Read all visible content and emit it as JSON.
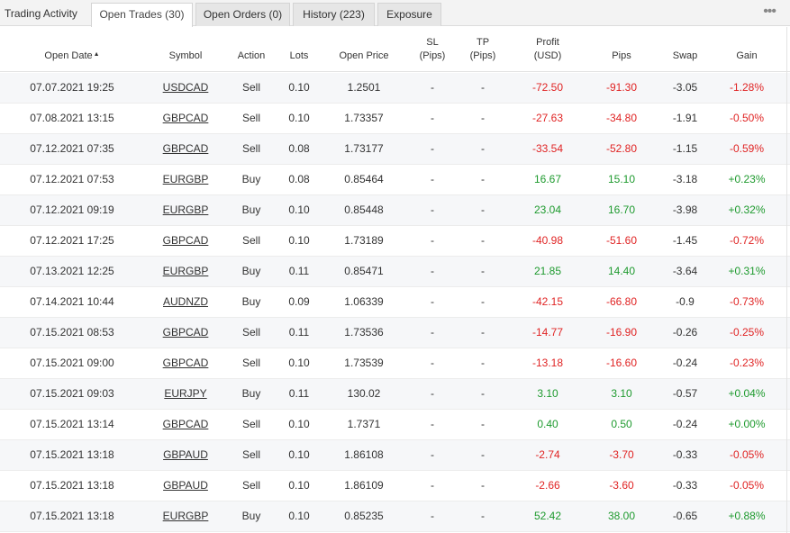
{
  "tabs": {
    "title": "Trading Activity",
    "items": [
      "Open Trades (30)",
      "Open Orders (0)",
      "History (223)",
      "Exposure"
    ],
    "more": "•••"
  },
  "columns": {
    "open_date": "Open Date",
    "sort_arrow": "▲",
    "symbol": "Symbol",
    "action": "Action",
    "lots": "Lots",
    "open_price": "Open Price",
    "sl_line1": "SL",
    "sl_line2": "(Pips)",
    "tp_line1": "TP",
    "tp_line2": "(Pips)",
    "profit_line1": "Profit",
    "profit_line2": "(USD)",
    "pips": "Pips",
    "swap": "Swap",
    "gain": "Gain"
  },
  "colors": {
    "positive": "#1e9a2e",
    "negative": "#e02424"
  },
  "trades": [
    {
      "date": "07.07.2021 19:25",
      "symbol": "USDCAD",
      "action": "Sell",
      "lots": "0.10",
      "price": "1.2501",
      "sl": "-",
      "tp": "-",
      "profit": "-72.50",
      "pips": "-91.30",
      "swap": "-3.05",
      "gain": "-1.28%"
    },
    {
      "date": "07.08.2021 13:15",
      "symbol": "GBPCAD",
      "action": "Sell",
      "lots": "0.10",
      "price": "1.73357",
      "sl": "-",
      "tp": "-",
      "profit": "-27.63",
      "pips": "-34.80",
      "swap": "-1.91",
      "gain": "-0.50%"
    },
    {
      "date": "07.12.2021 07:35",
      "symbol": "GBPCAD",
      "action": "Sell",
      "lots": "0.08",
      "price": "1.73177",
      "sl": "-",
      "tp": "-",
      "profit": "-33.54",
      "pips": "-52.80",
      "swap": "-1.15",
      "gain": "-0.59%"
    },
    {
      "date": "07.12.2021 07:53",
      "symbol": "EURGBP",
      "action": "Buy",
      "lots": "0.08",
      "price": "0.85464",
      "sl": "-",
      "tp": "-",
      "profit": "16.67",
      "pips": "15.10",
      "swap": "-3.18",
      "gain": "+0.23%"
    },
    {
      "date": "07.12.2021 09:19",
      "symbol": "EURGBP",
      "action": "Buy",
      "lots": "0.10",
      "price": "0.85448",
      "sl": "-",
      "tp": "-",
      "profit": "23.04",
      "pips": "16.70",
      "swap": "-3.98",
      "gain": "+0.32%"
    },
    {
      "date": "07.12.2021 17:25",
      "symbol": "GBPCAD",
      "action": "Sell",
      "lots": "0.10",
      "price": "1.73189",
      "sl": "-",
      "tp": "-",
      "profit": "-40.98",
      "pips": "-51.60",
      "swap": "-1.45",
      "gain": "-0.72%"
    },
    {
      "date": "07.13.2021 12:25",
      "symbol": "EURGBP",
      "action": "Buy",
      "lots": "0.11",
      "price": "0.85471",
      "sl": "-",
      "tp": "-",
      "profit": "21.85",
      "pips": "14.40",
      "swap": "-3.64",
      "gain": "+0.31%"
    },
    {
      "date": "07.14.2021 10:44",
      "symbol": "AUDNZD",
      "action": "Buy",
      "lots": "0.09",
      "price": "1.06339",
      "sl": "-",
      "tp": "-",
      "profit": "-42.15",
      "pips": "-66.80",
      "swap": "-0.9",
      "gain": "-0.73%"
    },
    {
      "date": "07.15.2021 08:53",
      "symbol": "GBPCAD",
      "action": "Sell",
      "lots": "0.11",
      "price": "1.73536",
      "sl": "-",
      "tp": "-",
      "profit": "-14.77",
      "pips": "-16.90",
      "swap": "-0.26",
      "gain": "-0.25%"
    },
    {
      "date": "07.15.2021 09:00",
      "symbol": "GBPCAD",
      "action": "Sell",
      "lots": "0.10",
      "price": "1.73539",
      "sl": "-",
      "tp": "-",
      "profit": "-13.18",
      "pips": "-16.60",
      "swap": "-0.24",
      "gain": "-0.23%"
    },
    {
      "date": "07.15.2021 09:03",
      "symbol": "EURJPY",
      "action": "Buy",
      "lots": "0.11",
      "price": "130.02",
      "sl": "-",
      "tp": "-",
      "profit": "3.10",
      "pips": "3.10",
      "swap": "-0.57",
      "gain": "+0.04%"
    },
    {
      "date": "07.15.2021 13:14",
      "symbol": "GBPCAD",
      "action": "Sell",
      "lots": "0.10",
      "price": "1.7371",
      "sl": "-",
      "tp": "-",
      "profit": "0.40",
      "pips": "0.50",
      "swap": "-0.24",
      "gain": "+0.00%"
    },
    {
      "date": "07.15.2021 13:18",
      "symbol": "GBPAUD",
      "action": "Sell",
      "lots": "0.10",
      "price": "1.86108",
      "sl": "-",
      "tp": "-",
      "profit": "-2.74",
      "pips": "-3.70",
      "swap": "-0.33",
      "gain": "-0.05%"
    },
    {
      "date": "07.15.2021 13:18",
      "symbol": "GBPAUD",
      "action": "Sell",
      "lots": "0.10",
      "price": "1.86109",
      "sl": "-",
      "tp": "-",
      "profit": "-2.66",
      "pips": "-3.60",
      "swap": "-0.33",
      "gain": "-0.05%"
    },
    {
      "date": "07.15.2021 13:18",
      "symbol": "EURGBP",
      "action": "Buy",
      "lots": "0.10",
      "price": "0.85235",
      "sl": "-",
      "tp": "-",
      "profit": "52.42",
      "pips": "38.00",
      "swap": "-0.65",
      "gain": "+0.88%"
    }
  ]
}
